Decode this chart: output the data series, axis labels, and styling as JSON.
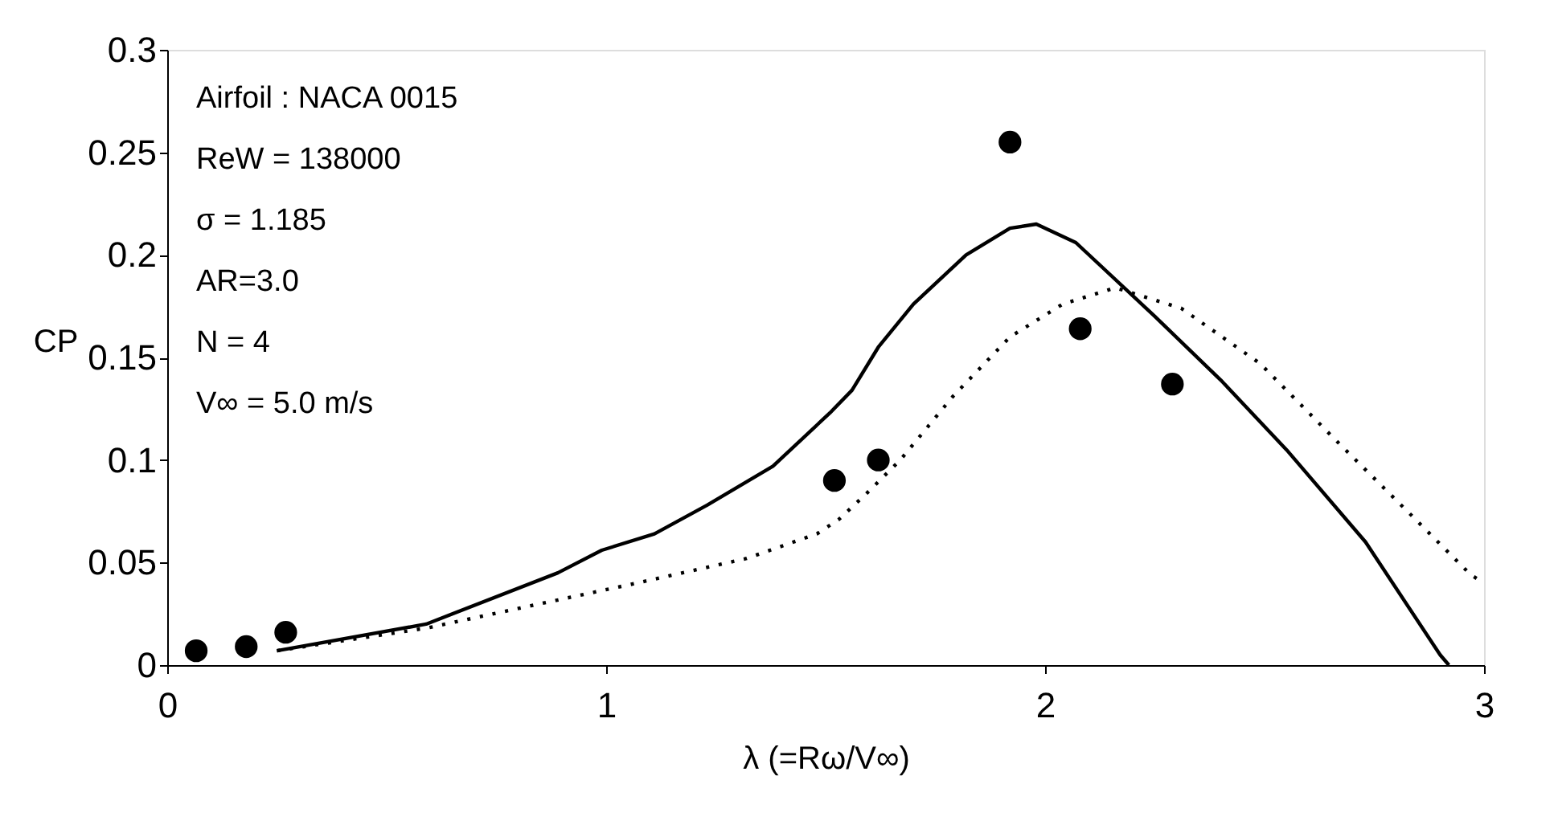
{
  "chart_data": {
    "type": "line",
    "xlabel": "λ (=Rω/V∞)",
    "ylabel": "CP",
    "xlim": [
      0,
      3
    ],
    "xticks": [
      0,
      1,
      2,
      3
    ],
    "ylim": [
      0,
      0.3
    ],
    "yticks": [
      0,
      0.05,
      0.1,
      0.15,
      0.2,
      0.25,
      0.3
    ],
    "grid": false,
    "annotations": [
      "Airfoil : NACA 0015",
      "ReW = 138000",
      "σ = 1.185",
      "AR=3.0",
      "N = 4",
      "V∞ = 5.0 m/s"
    ],
    "series": [
      {
        "type": "scatter",
        "color": "#000000",
        "marker": "circle",
        "x": [
          0.066,
          0.18,
          0.27,
          1.52,
          1.62,
          1.92,
          2.08,
          2.29
        ],
        "values": [
          0.007,
          0.009,
          0.016,
          0.09,
          0.1,
          0.255,
          0.164,
          0.137
        ]
      },
      {
        "color": "#000000",
        "line_style": "solid",
        "x": [
          0.25,
          0.59,
          0.89,
          0.99,
          1.11,
          1.23,
          1.38,
          1.51,
          1.56,
          1.62,
          1.7,
          1.82,
          1.92,
          1.98,
          2.07,
          2.25,
          2.4,
          2.55,
          2.73,
          2.9,
          2.92
        ],
        "values": [
          0.007,
          0.02,
          0.045,
          0.056,
          0.064,
          0.078,
          0.097,
          0.123,
          0.134,
          0.155,
          0.176,
          0.2,
          0.213,
          0.215,
          0.206,
          0.17,
          0.139,
          0.105,
          0.06,
          0.005,
          0.0
        ]
      },
      {
        "color": "#000000",
        "line_style": "dotted",
        "x": [
          0.25,
          0.59,
          0.83,
          1.07,
          1.32,
          1.48,
          1.53,
          1.59,
          1.67,
          1.79,
          1.92,
          2.04,
          2.16,
          2.31,
          2.49,
          2.67,
          2.83,
          2.97,
          3.0
        ],
        "values": [
          0.007,
          0.018,
          0.029,
          0.04,
          0.052,
          0.064,
          0.071,
          0.083,
          0.1,
          0.131,
          0.16,
          0.176,
          0.184,
          0.174,
          0.147,
          0.108,
          0.074,
          0.044,
          0.04
        ]
      }
    ]
  }
}
